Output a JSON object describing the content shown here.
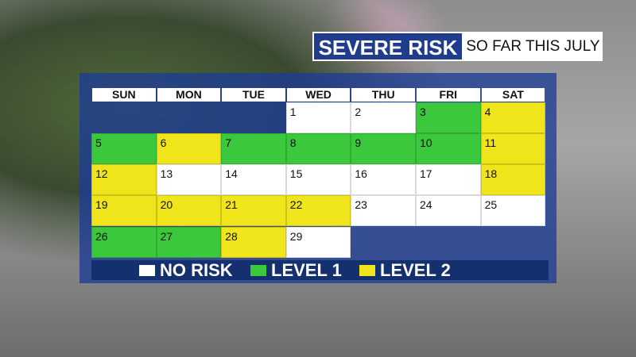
{
  "header": {
    "title": "SEVERE RISK",
    "subtitle": "SO FAR THIS JULY"
  },
  "calendar": {
    "weekdays": [
      "SUN",
      "MON",
      "TUE",
      "WED",
      "THU",
      "FRI",
      "SAT"
    ],
    "weeks": [
      [
        null,
        null,
        null,
        {
          "day": 1,
          "color": "#ffffff"
        },
        {
          "day": 2,
          "color": "#ffffff"
        },
        {
          "day": 3,
          "color": "#3cc83c"
        },
        {
          "day": 4,
          "color": "#f0e41a"
        }
      ],
      [
        {
          "day": 5,
          "color": "#3cc83c"
        },
        {
          "day": 6,
          "color": "#f0e41a"
        },
        {
          "day": 7,
          "color": "#3cc83c"
        },
        {
          "day": 8,
          "color": "#3cc83c"
        },
        {
          "day": 9,
          "color": "#3cc83c"
        },
        {
          "day": 10,
          "color": "#3cc83c"
        },
        {
          "day": 11,
          "color": "#f0e41a"
        }
      ],
      [
        {
          "day": 12,
          "color": "#f0e41a"
        },
        {
          "day": 13,
          "color": "#ffffff"
        },
        {
          "day": 14,
          "color": "#ffffff"
        },
        {
          "day": 15,
          "color": "#ffffff"
        },
        {
          "day": 16,
          "color": "#ffffff"
        },
        {
          "day": 17,
          "color": "#ffffff"
        },
        {
          "day": 18,
          "color": "#f0e41a"
        }
      ],
      [
        {
          "day": 19,
          "color": "#f0e41a"
        },
        {
          "day": 20,
          "color": "#f0e41a"
        },
        {
          "day": 21,
          "color": "#f0e41a"
        },
        {
          "day": 22,
          "color": "#f0e41a"
        },
        {
          "day": 23,
          "color": "#ffffff"
        },
        {
          "day": 24,
          "color": "#ffffff"
        },
        {
          "day": 25,
          "color": "#ffffff"
        }
      ],
      [
        {
          "day": 26,
          "color": "#3cc83c"
        },
        {
          "day": 27,
          "color": "#3cc83c"
        },
        {
          "day": 28,
          "color": "#f0e41a"
        },
        {
          "day": 29,
          "color": "#ffffff"
        },
        null,
        null,
        null
      ]
    ]
  },
  "legend": [
    {
      "label": "NO RISK",
      "color": "#ffffff"
    },
    {
      "label": "LEVEL 1",
      "color": "#3cc83c"
    },
    {
      "label": "LEVEL 2",
      "color": "#f0e41a"
    }
  ]
}
